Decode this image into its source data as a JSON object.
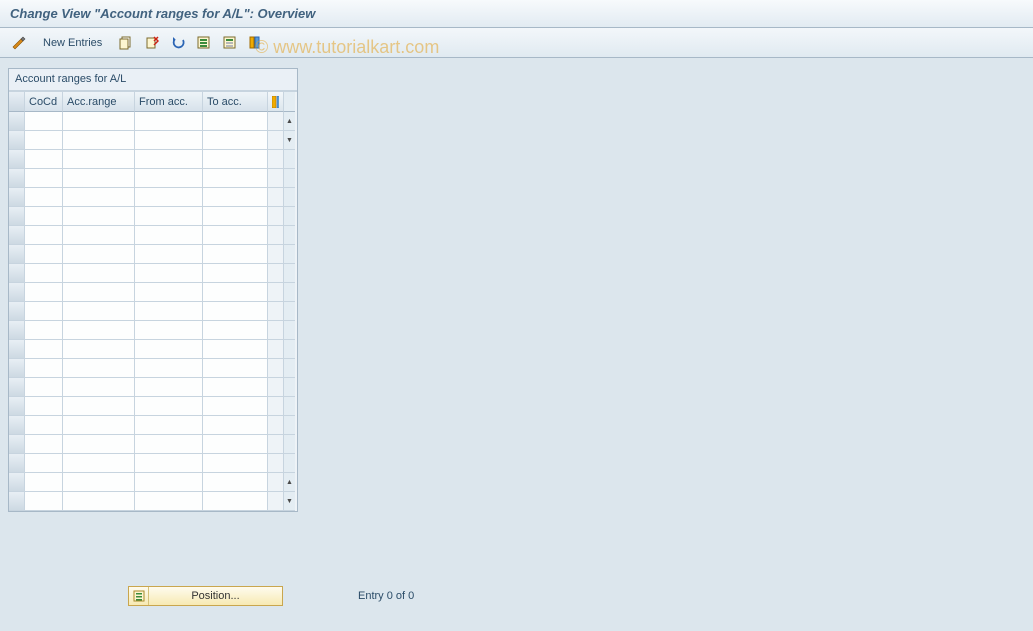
{
  "title": "Change View \"Account ranges for A/L\": Overview",
  "toolbar": {
    "new_entries_label": "New Entries"
  },
  "panel": {
    "title": "Account ranges for A/L",
    "columns": {
      "cocd": "CoCd",
      "accrange": "Acc.range",
      "fromacc": "From acc.",
      "toacc": "To acc."
    },
    "row_count": 21
  },
  "footer": {
    "position_label": "Position...",
    "entry_text": "Entry 0 of 0"
  },
  "watermark": "© www.tutorialkart.com",
  "colors": {
    "body_bg": "#dce6ed",
    "title_text": "#41627f",
    "border": "#a7b8c7",
    "header_text": "#2b4c68"
  }
}
